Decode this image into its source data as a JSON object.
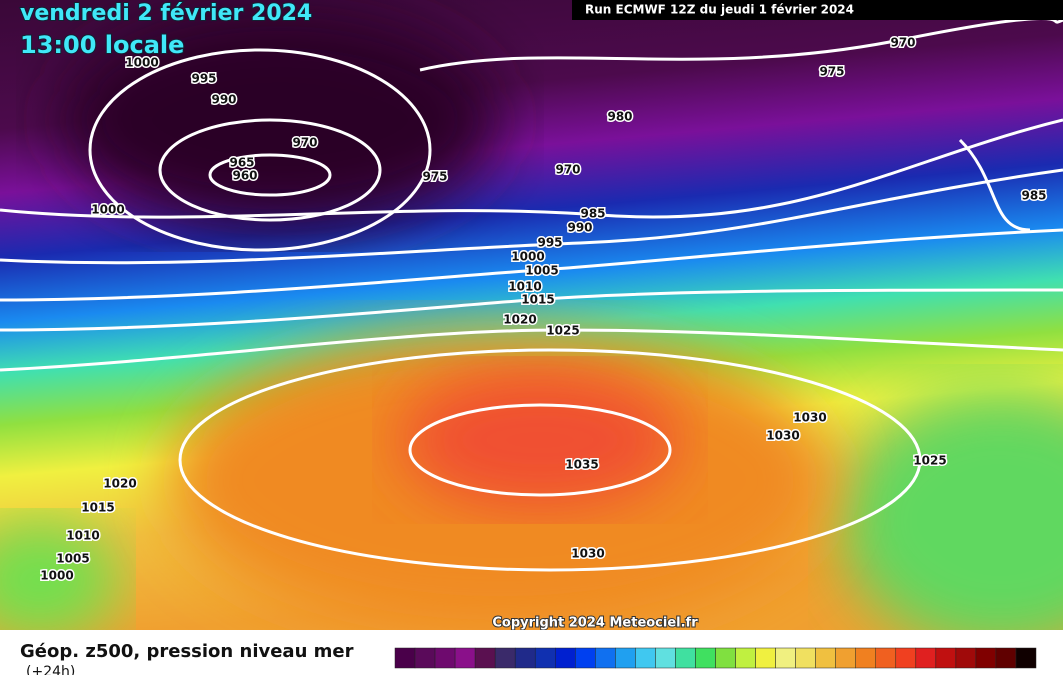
{
  "header": {
    "date": "vendredi 2 février 2024",
    "time": "13:00 locale",
    "run": "Run ECMWF 12Z du jeudi 1 février 2024"
  },
  "map": {
    "isobar_labels": [
      "1000",
      "995",
      "990",
      "970",
      "965",
      "960",
      "975",
      "1000",
      "970",
      "975",
      "980",
      "970",
      "985",
      "990",
      "995",
      "1000",
      "1005",
      "1010",
      "1015",
      "1020",
      "1025",
      "985",
      "1030",
      "1030",
      "1025",
      "1035",
      "1030",
      "1020",
      "1015",
      "1010",
      "1005",
      "1000"
    ],
    "copyright": "Copyright 2024 Meteociel.fr"
  },
  "legend": {
    "title": "Géop. z500, pression niveau mer",
    "subtitle": "(+24h)",
    "colors": [
      "#4a004a",
      "#5a0a5a",
      "#6e0a6e",
      "#8a108a",
      "#5a1050",
      "#3a2a6a",
      "#202a8a",
      "#1030b0",
      "#0020d0",
      "#0040f0",
      "#1070f0",
      "#20a0f0",
      "#40c8f0",
      "#60e0e0",
      "#40e0a0",
      "#40e060",
      "#80e040",
      "#c0f040",
      "#f0f040",
      "#f0f080",
      "#f0e060",
      "#f0c040",
      "#f0a030",
      "#f08020",
      "#f06020",
      "#f04020",
      "#e02020",
      "#c01010",
      "#a00a0a",
      "#800000",
      "#600000",
      "#100000"
    ]
  }
}
